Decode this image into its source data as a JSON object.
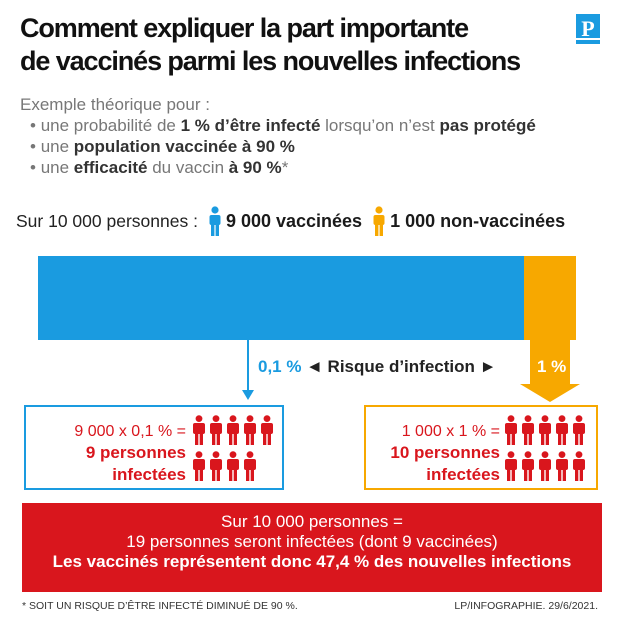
{
  "title_line1": "Comment expliquer la part importante",
  "title_line2": "de vaccinés parmi les nouvelles infections",
  "logo": {
    "letter": "P",
    "icon": "le-parisien-logo",
    "color": "#1a9be0"
  },
  "intro": {
    "heading": "Exemple théorique pour :",
    "bullet1": {
      "a": "une probabilité de ",
      "b": "1 % d’être infecté",
      "c": " lorsqu’on n’est ",
      "d": "pas protégé"
    },
    "bullet2": {
      "a": "une ",
      "b": "population vaccinée à 90 %"
    },
    "bullet3": {
      "a": "une ",
      "b": "efficacité",
      "c": " du vaccin ",
      "d": "à 90 %",
      "e": "*"
    }
  },
  "population": {
    "lead": "Sur 10 000 personnes :",
    "vaccinated": "9 000 vaccinées",
    "unvaccinated": "1 000 non-vaccinées",
    "vaccinated_share": 0.9,
    "unvaccinated_share": 0.1,
    "colors": {
      "vaccinated": "#1a9be0",
      "unvaccinated": "#f7a800",
      "infected": "#d9161d"
    }
  },
  "risk": {
    "vaccinated": "0,1 %",
    "label": "◄ Risque d’infection ►",
    "unvaccinated": "1 %"
  },
  "box_vaccinated": {
    "calc": "9 000 x 0,1 % =",
    "result_line1": "9 personnes",
    "result_line2": "infectées",
    "infected_count": 9
  },
  "box_unvaccinated": {
    "calc": "1 000 x 1 % =",
    "result_line1": "10 personnes",
    "result_line2": "infectées",
    "infected_count": 10
  },
  "summary": {
    "line1": "Sur 10 000 personnes =",
    "line2": "19 personnes seront infectées (dont 9 vaccinées)",
    "line3": "Les vaccinés représentent donc 47,4 % des nouvelles infections"
  },
  "footnote": "* SOIT UN RISQUE D’ÊTRE INFECTÉ DIMINUÉ DE 90 %.",
  "credit": "LP/INFOGRAPHIE.  29/6/2021."
}
